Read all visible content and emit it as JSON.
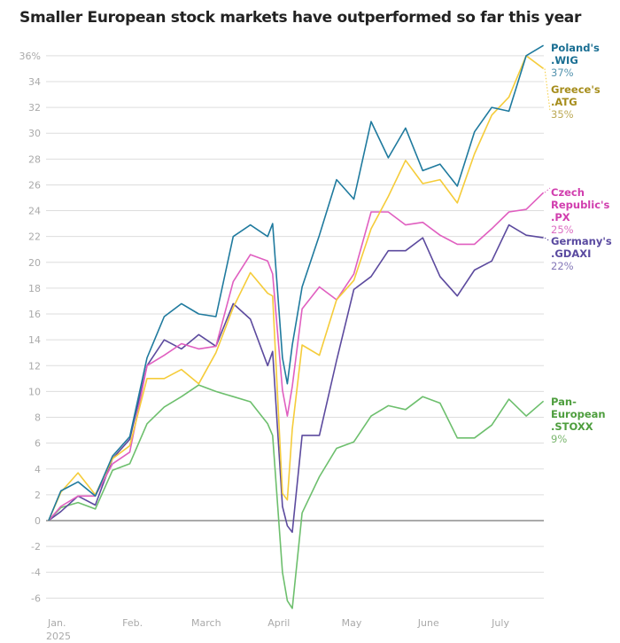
{
  "chart_data": {
    "type": "line",
    "title": "Smaller European stock markets have outperformed so far this year",
    "xlabel": "",
    "ylabel": "",
    "ylim": [
      -7,
      37
    ],
    "y_ticks": [
      -6,
      -4,
      -2,
      0,
      2,
      4,
      6,
      8,
      10,
      12,
      14,
      16,
      18,
      20,
      22,
      24,
      26,
      28,
      30,
      32,
      34,
      36
    ],
    "y_tick_labels": [
      "-6",
      "-4",
      "-2",
      "0",
      "2",
      "4",
      "6",
      "8",
      "10",
      "12",
      "14",
      "16",
      "18",
      "20",
      "22",
      "24",
      "26",
      "28",
      "30",
      "32",
      "34",
      "36%"
    ],
    "x_ticks": [
      {
        "date": "2025-01-01",
        "label": "Jan.",
        "sublabel": "2025"
      },
      {
        "date": "2025-02-01",
        "label": "Feb."
      },
      {
        "date": "2025-03-01",
        "label": "March"
      },
      {
        "date": "2025-04-01",
        "label": "April"
      },
      {
        "date": "2025-05-01",
        "label": "May"
      },
      {
        "date": "2025-06-01",
        "label": "June"
      },
      {
        "date": "2025-07-01",
        "label": "July"
      }
    ],
    "grid": true,
    "x": [
      "2025-01-02",
      "2025-01-07",
      "2025-01-14",
      "2025-01-21",
      "2025-01-28",
      "2025-02-04",
      "2025-02-11",
      "2025-02-18",
      "2025-02-25",
      "2025-03-04",
      "2025-03-11",
      "2025-03-18",
      "2025-03-25",
      "2025-04-01",
      "2025-04-03",
      "2025-04-07",
      "2025-04-09",
      "2025-04-11",
      "2025-04-15",
      "2025-04-22",
      "2025-04-29",
      "2025-05-06",
      "2025-05-13",
      "2025-05-20",
      "2025-05-27",
      "2025-06-03",
      "2025-06-10",
      "2025-06-17",
      "2025-06-24",
      "2025-07-01",
      "2025-07-08",
      "2025-07-15",
      "2025-07-22"
    ],
    "series": [
      {
        "name": "Poland's .WIG",
        "end_label": "37%",
        "color": "#1f7a9e",
        "label_color": "#1a6f93",
        "values": [
          0,
          2.3,
          3,
          1.9,
          5,
          6.5,
          12.6,
          15.8,
          16.8,
          16,
          15.8,
          22,
          22.9,
          22,
          23,
          12.6,
          10.6,
          13.6,
          18.1,
          22.1,
          26.4,
          24.9,
          30.9,
          28.1,
          30.4,
          27.1,
          27.6,
          25.9,
          30.1,
          32,
          31.7,
          36,
          36.8
        ]
      },
      {
        "name": "Greece's .ATG",
        "end_label": "35%",
        "color": "#f5cc3a",
        "label_color": "#a68d1c",
        "values": [
          0,
          2.2,
          3.7,
          2,
          4.8,
          5.8,
          11,
          11,
          11.7,
          10.6,
          13,
          16.5,
          19.2,
          17.6,
          17.4,
          2.1,
          1.6,
          7.1,
          13.6,
          12.8,
          17.1,
          18.6,
          22.6,
          25.1,
          27.9,
          26.1,
          26.4,
          24.6,
          28.4,
          31.4,
          32.8,
          36,
          35
        ]
      },
      {
        "name": "Czech Republic's .PX",
        "end_label": "25%",
        "color": "#e05fc0",
        "label_color": "#d13eae",
        "values": [
          0,
          1.1,
          1.9,
          1.9,
          4.4,
          5.3,
          12,
          12.8,
          13.7,
          13.3,
          13.5,
          18.5,
          20.6,
          20.1,
          19.1,
          10.1,
          8.1,
          10.4,
          16.4,
          18.1,
          17.1,
          19.1,
          23.9,
          23.9,
          22.9,
          23.1,
          22.1,
          21.4,
          21.4,
          22.6,
          23.9,
          24.1,
          25.4
        ]
      },
      {
        "name": "Germany's .GDAXI",
        "end_label": "22%",
        "color": "#5c4a9e",
        "label_color": "#5a4aa0",
        "values": [
          0,
          0.7,
          1.9,
          1.2,
          4.8,
          6.3,
          12,
          14,
          13.3,
          14.4,
          13.5,
          16.8,
          15.6,
          12,
          13.1,
          1.1,
          -0.4,
          -0.9,
          6.6,
          6.6,
          12.4,
          17.9,
          18.9,
          20.9,
          20.9,
          21.9,
          18.9,
          17.4,
          19.4,
          20.1,
          22.9,
          22.1,
          21.9
        ]
      },
      {
        "name": "Pan-European .STOXX",
        "end_label": "9%",
        "color": "#6dbf6d",
        "label_color": "#4e9e3e",
        "values": [
          0,
          1,
          1.4,
          0.9,
          3.9,
          4.4,
          7.5,
          8.8,
          9.6,
          10.5,
          10,
          9.6,
          9.2,
          7.5,
          6.6,
          -4,
          -6.2,
          -6.8,
          0.6,
          3.4,
          5.6,
          6.1,
          8.1,
          8.9,
          8.6,
          9.6,
          9.1,
          6.4,
          6.4,
          7.4,
          9.4,
          8.1,
          9.25
        ]
      }
    ],
    "legend": "right-end-labels",
    "labels": [
      {
        "lines": [
          "Poland's",
          ".WIG"
        ],
        "pct": "37%"
      },
      {
        "lines": [
          "Greece's",
          ".ATG"
        ],
        "pct": "35%"
      },
      {
        "lines": [
          "Czech",
          "Republic's",
          ".PX"
        ],
        "pct": "25%"
      },
      {
        "lines": [
          "Germany's",
          ".GDAXI"
        ],
        "pct": "22%"
      },
      {
        "lines": [
          "Pan-",
          "European",
          ".STOXX"
        ],
        "pct": "9%"
      }
    ]
  }
}
